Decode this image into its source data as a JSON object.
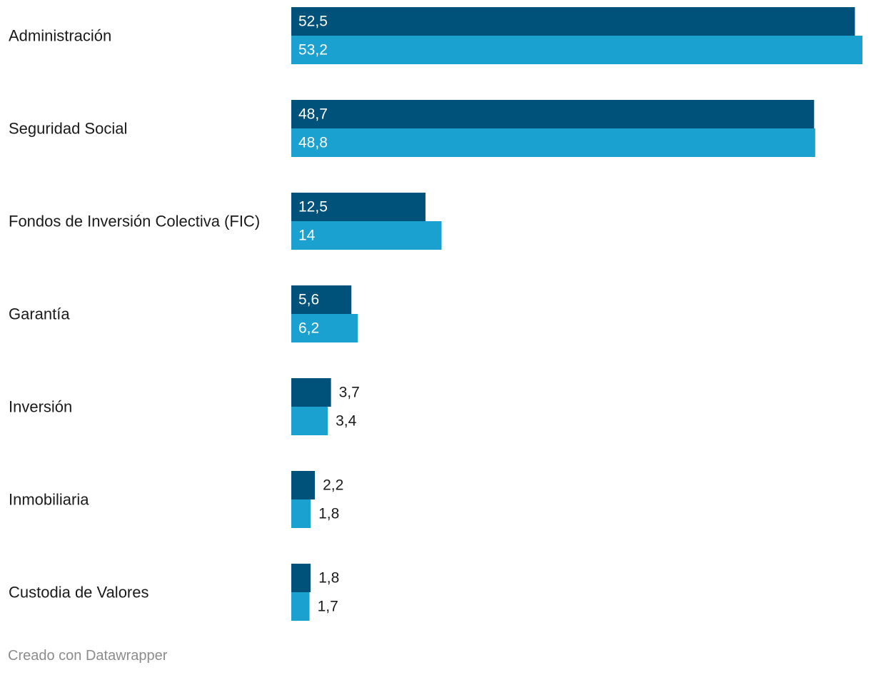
{
  "chart_data": {
    "type": "bar",
    "orientation": "horizontal",
    "title": "",
    "xlabel": "",
    "ylabel": "",
    "categories": [
      "Administración",
      "Seguridad Social",
      "Fondos de Inversión Colectiva (FIC)",
      "Garantía",
      "Inversión",
      "Inmobiliaria",
      "Custodia de Valores"
    ],
    "series": [
      {
        "name": "serie-1",
        "color": "#00527a",
        "values": [
          52.5,
          48.7,
          12.5,
          5.6,
          3.7,
          2.2,
          1.8
        ],
        "labels": [
          "52,5",
          "48,7",
          "12,5",
          "5,6",
          "3,7",
          "2,2",
          "1,8"
        ]
      },
      {
        "name": "serie-2",
        "color": "#1aa1cf",
        "values": [
          53.2,
          48.8,
          14,
          6.2,
          3.4,
          1.8,
          1.7
        ],
        "labels": [
          "53,2",
          "48,8",
          "14",
          "6,2",
          "3,4",
          "1,8",
          "1,7"
        ]
      }
    ],
    "xlim": [
      0,
      53.2
    ],
    "grid": false,
    "legend": "none"
  },
  "footer": {
    "credit": "Creado con Datawrapper"
  }
}
